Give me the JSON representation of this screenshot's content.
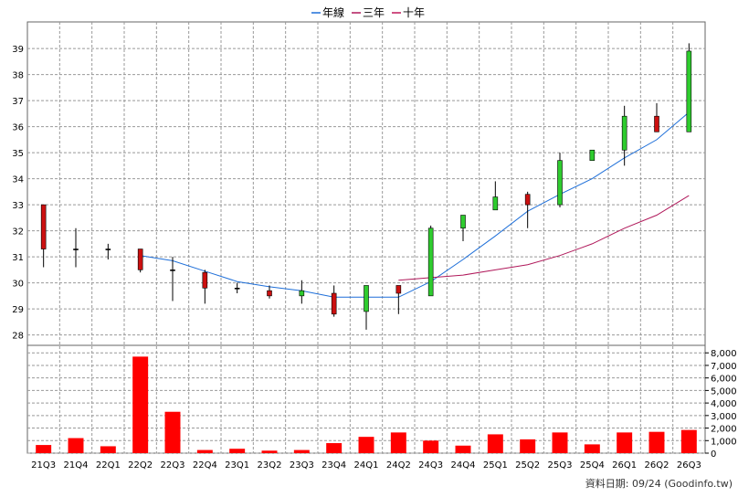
{
  "chart_data": {
    "type": "candlestick",
    "categories": [
      "21Q3",
      "21Q4",
      "22Q1",
      "22Q2",
      "22Q3",
      "22Q4",
      "23Q1",
      "23Q2",
      "23Q3",
      "23Q4",
      "24Q1",
      "24Q2",
      "24Q3",
      "24Q4",
      "25Q1",
      "25Q2",
      "25Q3",
      "25Q4",
      "26Q1",
      "26Q2",
      "26Q3"
    ],
    "legend": [
      {
        "name": "年線",
        "color": "#1e6fd9"
      },
      {
        "name": "三年",
        "color": "#b0185a"
      },
      {
        "name": "十年",
        "color": "#c0185a"
      }
    ],
    "legend_placement": "top-center",
    "price_axis": {
      "ylim": [
        27.6,
        39.6
      ],
      "ticks": [
        "28",
        "29",
        "30",
        "31",
        "32",
        "33",
        "34",
        "35",
        "36",
        "37",
        "38",
        "39"
      ]
    },
    "volume_axis": {
      "ylim": [
        0,
        8600
      ],
      "ticks": [
        "0",
        "1,000",
        "2,000",
        "3,000",
        "4,000",
        "5,000",
        "6,000",
        "7,000",
        "8,000"
      ]
    },
    "ohlc": [
      {
        "open": 31.3,
        "high": 33.0,
        "low": 30.6,
        "close": 33.0
      },
      {
        "open": 31.3,
        "high": 32.1,
        "low": 30.6,
        "close": 31.3
      },
      {
        "open": 31.3,
        "high": 31.5,
        "low": 30.9,
        "close": 31.3
      },
      {
        "open": 30.5,
        "high": 31.3,
        "low": 30.4,
        "close": 31.3
      },
      {
        "open": 30.5,
        "high": 31.0,
        "low": 29.3,
        "close": 30.5
      },
      {
        "open": 29.8,
        "high": 30.5,
        "low": 29.2,
        "close": 30.4
      },
      {
        "open": 29.8,
        "high": 30.0,
        "low": 29.6,
        "close": 29.8
      },
      {
        "open": 29.5,
        "high": 29.9,
        "low": 29.4,
        "close": 29.7
      },
      {
        "open": 29.7,
        "high": 30.1,
        "low": 29.2,
        "close": 29.5
      },
      {
        "open": 28.8,
        "high": 29.9,
        "low": 28.7,
        "close": 29.6
      },
      {
        "open": 29.9,
        "high": 29.9,
        "low": 28.2,
        "close": 28.9
      },
      {
        "open": 29.6,
        "high": 29.9,
        "low": 28.8,
        "close": 29.9
      },
      {
        "open": 32.1,
        "high": 32.2,
        "low": 29.5,
        "close": 29.5
      },
      {
        "open": 32.6,
        "high": 32.6,
        "low": 31.6,
        "close": 32.1
      },
      {
        "open": 33.3,
        "high": 33.9,
        "low": 32.8,
        "close": 32.8
      },
      {
        "open": 33.0,
        "high": 33.5,
        "low": 32.1,
        "close": 33.4
      },
      {
        "open": 34.7,
        "high": 35.0,
        "low": 32.9,
        "close": 33.0
      },
      {
        "open": 35.1,
        "high": 35.1,
        "low": 34.7,
        "close": 34.7
      },
      {
        "open": 36.4,
        "high": 36.8,
        "low": 34.5,
        "close": 35.1
      },
      {
        "open": 35.8,
        "high": 36.9,
        "low": 35.8,
        "close": 36.4
      },
      {
        "open": 38.9,
        "high": 39.2,
        "low": 35.8,
        "close": 35.8
      }
    ],
    "series": [
      {
        "name": "年線",
        "values": [
          null,
          null,
          null,
          31.05,
          30.85,
          30.45,
          30.05,
          29.85,
          29.7,
          29.45,
          29.45,
          29.45,
          30.05,
          30.9,
          31.8,
          32.75,
          33.4,
          34.0,
          34.8,
          35.5,
          36.55
        ]
      },
      {
        "name": "三年",
        "values": [
          null,
          null,
          null,
          null,
          null,
          null,
          null,
          null,
          null,
          null,
          null,
          30.1,
          30.2,
          30.3,
          30.5,
          30.7,
          31.05,
          31.5,
          32.1,
          32.6,
          33.35
        ]
      }
    ],
    "volume": [
      650,
      1200,
      550,
      7700,
      3300,
      250,
      350,
      200,
      250,
      800,
      1300,
      1650,
      1000,
      600,
      1500,
      1100,
      1650,
      700,
      1650,
      1700,
      1850
    ]
  },
  "footer_note": "資料日期: 09/24  (Goodinfo.tw)",
  "colors": {
    "up": "#2ecc2e",
    "down": "#cc1010",
    "volume": "#ff0000",
    "grid": "#999999",
    "axis": "#000000"
  }
}
